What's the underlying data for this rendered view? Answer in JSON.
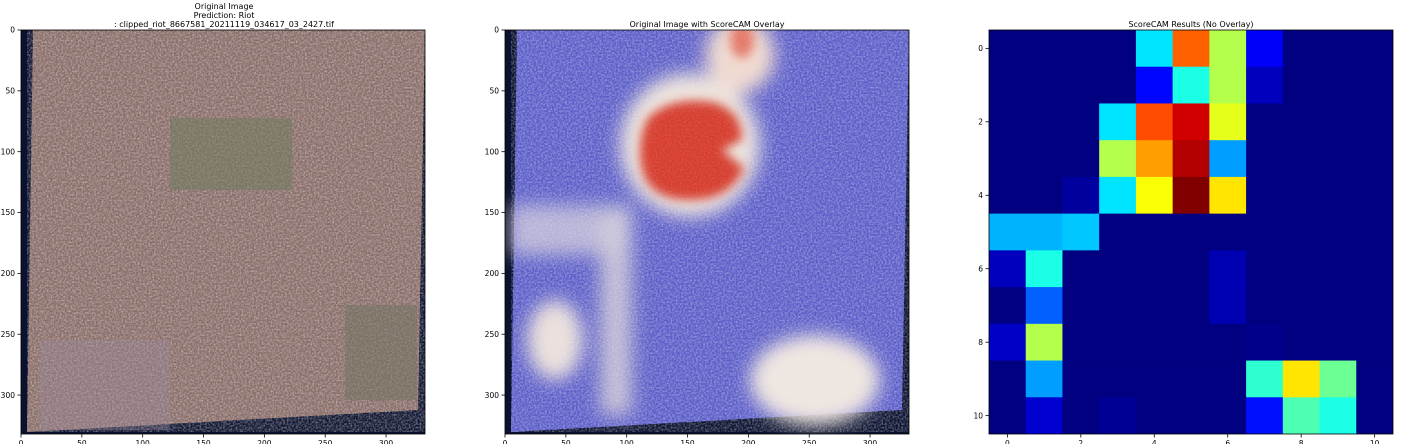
{
  "panels": {
    "original": {
      "title_lines": [
        "Original Image",
        "Prediction: Riot",
        ": clipped_riot_8667581_20211119_034617_03_2427.tif"
      ],
      "xticks": [
        0,
        50,
        100,
        150,
        200,
        250,
        300
      ],
      "yticks": [
        0,
        50,
        100,
        150,
        200,
        250,
        300
      ]
    },
    "overlay": {
      "title": "Original Image with ScoreCAM Overlay",
      "xticks": [
        0,
        50,
        100,
        150,
        200,
        250,
        300
      ],
      "yticks": [
        0,
        50,
        100,
        150,
        200,
        250,
        300
      ]
    },
    "heatmap": {
      "title": "ScoreCAM Results (No Overlay)",
      "xticks": [
        0,
        2,
        4,
        6,
        8,
        10
      ],
      "yticks": [
        0,
        2,
        4,
        6,
        8,
        10
      ]
    }
  },
  "colors": {
    "jet_dark_blue": "#00008f",
    "photo_base": "#8a6f6a",
    "overlay_base": "#5254c4"
  },
  "chart_data": [
    {
      "type": "image",
      "title": "Original Image\nPrediction: Riot\n: clipped_riot_8667581_20211119_034617_03_2427.tif",
      "xlim": [
        0,
        332
      ],
      "ylim": [
        332,
        0
      ]
    },
    {
      "type": "image",
      "title": "Original Image with ScoreCAM Overlay",
      "xlim": [
        0,
        332
      ],
      "ylim": [
        332,
        0
      ]
    },
    {
      "type": "heatmap",
      "title": "ScoreCAM Results (No Overlay)",
      "colormap": "jet",
      "xlim": [
        -0.5,
        10.5
      ],
      "ylim": [
        10.5,
        -0.5
      ],
      "values": [
        [
          0.0,
          0.0,
          0.0,
          0.0,
          0.35,
          0.78,
          0.55,
          0.12,
          0.0,
          0.0,
          0.0
        ],
        [
          0.0,
          0.0,
          0.0,
          0.0,
          0.13,
          0.4,
          0.55,
          0.06,
          0.0,
          0.0,
          0.0
        ],
        [
          0.0,
          0.0,
          0.0,
          0.35,
          0.8,
          0.92,
          0.6,
          0.0,
          0.0,
          0.0,
          0.0
        ],
        [
          0.0,
          0.0,
          0.0,
          0.55,
          0.72,
          0.95,
          0.28,
          0.0,
          0.0,
          0.0,
          0.0
        ],
        [
          0.0,
          0.0,
          0.03,
          0.35,
          0.62,
          1.0,
          0.65,
          0.0,
          0.0,
          0.0,
          0.0
        ],
        [
          0.3,
          0.3,
          0.32,
          0.0,
          0.0,
          0.0,
          0.0,
          0.0,
          0.0,
          0.0,
          0.0
        ],
        [
          0.06,
          0.4,
          0.0,
          0.0,
          0.0,
          0.0,
          0.05,
          0.0,
          0.0,
          0.0,
          0.0
        ],
        [
          0.0,
          0.22,
          0.0,
          0.0,
          0.0,
          0.0,
          0.05,
          0.0,
          0.0,
          0.0,
          0.0
        ],
        [
          0.07,
          0.55,
          0.0,
          0.0,
          0.0,
          0.0,
          0.0,
          0.01,
          0.0,
          0.0,
          0.0
        ],
        [
          0.0,
          0.28,
          0.0,
          0.0,
          0.0,
          0.0,
          0.0,
          0.42,
          0.65,
          0.48,
          0.0
        ],
        [
          0.0,
          0.08,
          0.0,
          0.02,
          0.0,
          0.0,
          0.0,
          0.14,
          0.45,
          0.4,
          0.0
        ]
      ]
    }
  ]
}
